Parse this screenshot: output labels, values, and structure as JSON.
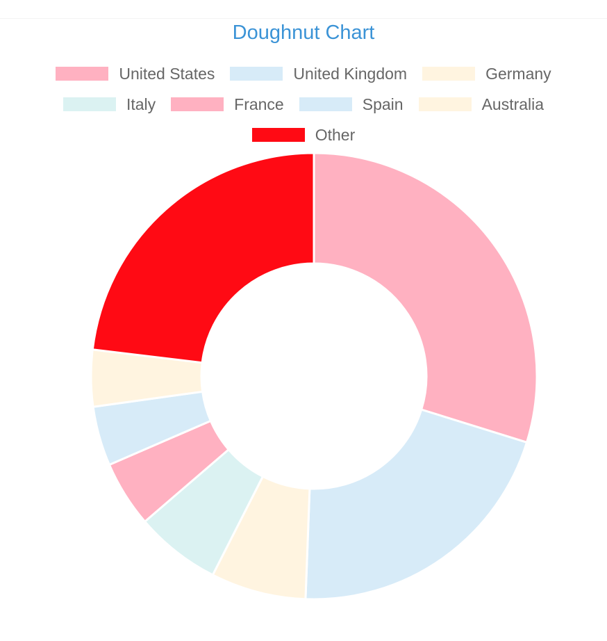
{
  "chart_data": {
    "type": "doughnut",
    "title": "Doughnut Chart",
    "legend_position": "top",
    "labels": [
      "United States",
      "United Kingdom",
      "Germany",
      "Italy",
      "France",
      "Spain",
      "Australia",
      "Other"
    ],
    "values": [
      29.8,
      20.8,
      6.9,
      6.2,
      4.8,
      4.3,
      4.1,
      23.1
    ],
    "unit": "percent",
    "colors": [
      "#ffb1c1",
      "#d7ebf8",
      "#fff4e0",
      "#dbf2f2",
      "#ffb1c1",
      "#d7ebf8",
      "#fff4e0",
      "#ff0a14"
    ],
    "border_color": "#ffffff"
  }
}
